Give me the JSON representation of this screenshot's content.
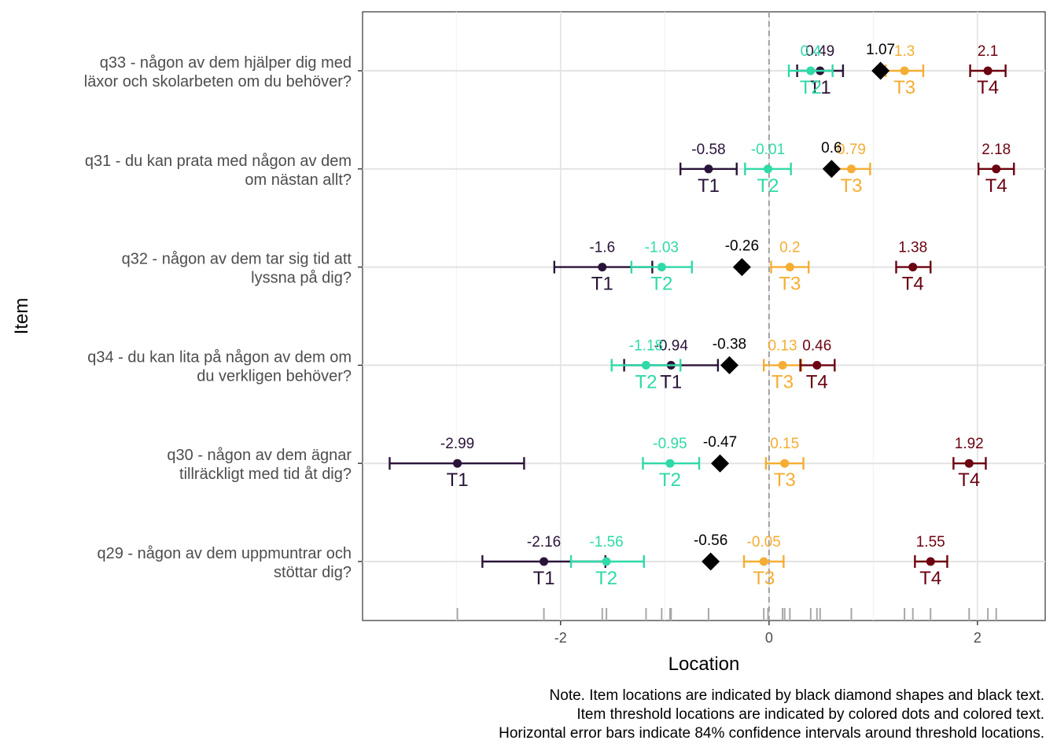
{
  "chart_data": {
    "type": "scatter",
    "xlabel": "Location",
    "ylabel": "Item",
    "xlim": [
      -3.9,
      2.65
    ],
    "xticks": [
      -2,
      0,
      2
    ],
    "grid": true,
    "reference_line_x": 0,
    "items": [
      {
        "label_lines": [
          "q33 - någon av dem hjälper dig med",
          "läxor och skolarbeten om du behöver?"
        ],
        "location": 1.07,
        "location_label": "1.07",
        "thresholds": [
          {
            "name": "T1",
            "value": 0.49,
            "label": "0.49",
            "ci": [
              0.27,
              0.71
            ]
          },
          {
            "name": "T2",
            "value": 0.4,
            "label": "0.4",
            "ci": [
              0.19,
              0.61
            ]
          },
          {
            "name": "T3",
            "value": 1.3,
            "label": "1.3",
            "ci": [
              1.12,
              1.48
            ]
          },
          {
            "name": "T4",
            "value": 2.1,
            "label": "2.1",
            "ci": [
              1.93,
              2.27
            ]
          }
        ]
      },
      {
        "label_lines": [
          "q31 - du kan prata med någon av dem",
          "om nästan allt?"
        ],
        "location": 0.6,
        "location_label": "0.6",
        "thresholds": [
          {
            "name": "T1",
            "value": -0.58,
            "label": "-0.58",
            "ci": [
              -0.85,
              -0.31
            ]
          },
          {
            "name": "T2",
            "value": -0.01,
            "label": "-0.01",
            "ci": [
              -0.23,
              0.21
            ]
          },
          {
            "name": "T3",
            "value": 0.79,
            "label": "0.79",
            "ci": [
              0.62,
              0.97
            ]
          },
          {
            "name": "T4",
            "value": 2.18,
            "label": "2.18",
            "ci": [
              2.01,
              2.35
            ]
          }
        ]
      },
      {
        "label_lines": [
          "q32 - någon av dem tar sig tid att",
          "lyssna på dig?"
        ],
        "location": -0.26,
        "location_label": "-0.26",
        "thresholds": [
          {
            "name": "T1",
            "value": -1.6,
            "label": "-1.6",
            "ci": [
              -2.06,
              -1.12
            ]
          },
          {
            "name": "T2",
            "value": -1.03,
            "label": "-1.03",
            "ci": [
              -1.32,
              -0.74
            ]
          },
          {
            "name": "T3",
            "value": 0.2,
            "label": "0.2",
            "ci": [
              0.02,
              0.38
            ]
          },
          {
            "name": "T4",
            "value": 1.38,
            "label": "1.38",
            "ci": [
              1.22,
              1.55
            ]
          }
        ]
      },
      {
        "label_lines": [
          "q34 - du kan lita på någon av dem om",
          "du verkligen behöver?"
        ],
        "location": -0.38,
        "location_label": "-0.38",
        "thresholds": [
          {
            "name": "T1",
            "value": -0.94,
            "label": "-0.94",
            "ci": [
              -1.39,
              -0.49
            ]
          },
          {
            "name": "T2",
            "value": -1.18,
            "label": "-1.18",
            "ci": [
              -1.51,
              -0.85
            ]
          },
          {
            "name": "T3",
            "value": 0.13,
            "label": "0.13",
            "ci": [
              -0.05,
              0.31
            ]
          },
          {
            "name": "T4",
            "value": 0.46,
            "label": "0.46",
            "ci": [
              0.3,
              0.63
            ]
          }
        ]
      },
      {
        "label_lines": [
          "q30 - någon av dem ägnar",
          "tillräckligt med tid åt dig?"
        ],
        "location": -0.47,
        "location_label": "-0.47",
        "thresholds": [
          {
            "name": "T1",
            "value": -2.99,
            "label": "-2.99",
            "ci": [
              -3.64,
              -2.35
            ]
          },
          {
            "name": "T2",
            "value": -0.95,
            "label": "-0.95",
            "ci": [
              -1.21,
              -0.67
            ]
          },
          {
            "name": "T3",
            "value": 0.15,
            "label": "0.15",
            "ci": [
              -0.03,
              0.33
            ]
          },
          {
            "name": "T4",
            "value": 1.92,
            "label": "1.92",
            "ci": [
              1.77,
              2.08
            ]
          }
        ]
      },
      {
        "label_lines": [
          "q29 - någon av dem uppmuntrar och",
          "stöttar dig?"
        ],
        "location": -0.56,
        "location_label": "-0.56",
        "thresholds": [
          {
            "name": "T1",
            "value": -2.16,
            "label": "-2.16",
            "ci": [
              -2.75,
              -1.57
            ]
          },
          {
            "name": "T2",
            "value": -1.56,
            "label": "-1.56",
            "ci": [
              -1.9,
              -1.2
            ]
          },
          {
            "name": "T3",
            "value": -0.05,
            "label": "-0.05",
            "ci": [
              -0.24,
              0.14
            ]
          },
          {
            "name": "T4",
            "value": 1.55,
            "label": "1.55",
            "ci": [
              1.4,
              1.71
            ]
          }
        ]
      }
    ],
    "threshold_colors": {
      "T1": "#2a1338",
      "T2": "#2fd9a8",
      "T3": "#f5ad33",
      "T4": "#6b0310"
    },
    "location_color": "#000000",
    "rug_values": [
      -2.99,
      -2.16,
      -1.6,
      -1.56,
      -1.18,
      -1.03,
      -0.95,
      -0.94,
      -0.58,
      -0.05,
      -0.01,
      0.13,
      0.15,
      0.2,
      0.4,
      0.46,
      0.49,
      0.79,
      1.3,
      1.38,
      1.55,
      1.92,
      2.1,
      2.18
    ],
    "note_lines": [
      "Note. Item locations are indicated by black diamond shapes and black text.",
      "Item threshold locations are indicated by colored dots and colored text.",
      "Horizontal error bars indicate 84% confidence intervals around threshold locations."
    ]
  }
}
